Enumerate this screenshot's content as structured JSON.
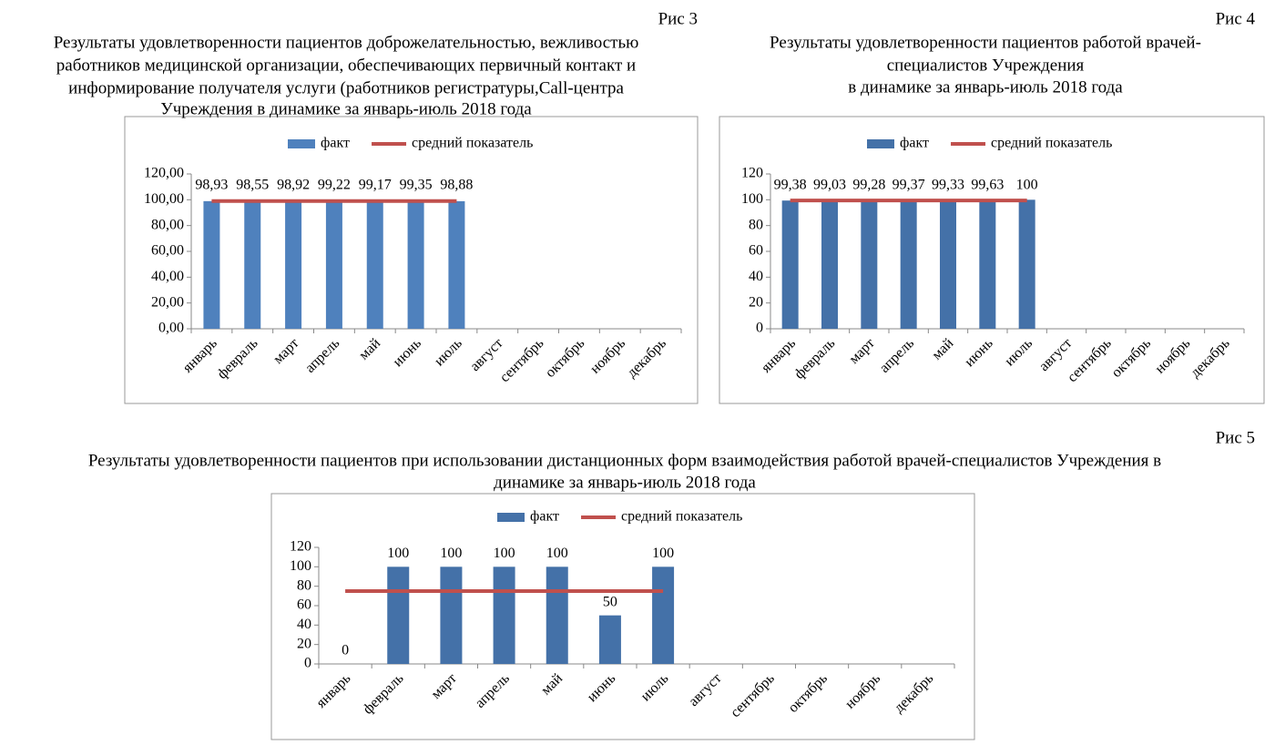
{
  "chart_data": [
    {
      "type": "bar",
      "figure": "Рис 3",
      "title": [
        "Результаты удовлетворенности пациентов доброжелательностью, вежливостью",
        "работников медицинской организации, обеспечивающих первичный контакт и",
        "информирование получателя услуги (работников регистратуры,Call-центра",
        "Учреждения в динамике за январь-июль 2018 года"
      ],
      "categories": [
        "январь",
        "февраль",
        "март",
        "апрель",
        "май",
        "июнь",
        "июль",
        "август",
        "сентябрь",
        "октябрь",
        "ноябрь",
        "декабрь"
      ],
      "series": [
        {
          "name": "факт",
          "color": "#4f81bd",
          "values": [
            98.93,
            98.55,
            98.92,
            99.22,
            99.17,
            99.35,
            98.88,
            null,
            null,
            null,
            null,
            null
          ],
          "value_labels": [
            "98,93",
            "98,55",
            "98,92",
            "99,22",
            "99,17",
            "99,35",
            "98,88",
            null,
            null,
            null,
            null,
            null
          ]
        },
        {
          "name": "средний показатель",
          "color": "#c0504d",
          "type": "line",
          "values": [
            99.0,
            99.0,
            99.0,
            99.0,
            99.0,
            99.0,
            99.0,
            null,
            null,
            null,
            null,
            null
          ]
        }
      ],
      "ylim": [
        0,
        120
      ],
      "yticks": [
        {
          "value": 0,
          "label": "0,00"
        },
        {
          "value": 20,
          "label": "20,00"
        },
        {
          "value": 40,
          "label": "40,00"
        },
        {
          "value": 60,
          "label": "60,00"
        },
        {
          "value": 80,
          "label": "80,00"
        },
        {
          "value": 100,
          "label": "100,00"
        },
        {
          "value": 120,
          "label": "120,00"
        }
      ]
    },
    {
      "type": "bar",
      "figure": "Рис 4",
      "title": [
        "Результаты удовлетворенности пациентов работой врачей-",
        "специалистов Учреждения",
        "в динамике за январь-июль 2018 года"
      ],
      "categories": [
        "январь",
        "февраль",
        "март",
        "апрель",
        "май",
        "июнь",
        "июль",
        "август",
        "сентябрь",
        "октябрь",
        "ноябрь",
        "декабрь"
      ],
      "series": [
        {
          "name": "факт",
          "color": "#4471a8",
          "values": [
            99.38,
            99.03,
            99.28,
            99.37,
            99.33,
            99.63,
            100,
            null,
            null,
            null,
            null,
            null
          ],
          "value_labels": [
            "99,38",
            "99,03",
            "99,28",
            "99,37",
            "99,33",
            "99,63",
            "100",
            null,
            null,
            null,
            null,
            null
          ]
        },
        {
          "name": "средний показатель",
          "color": "#c0504d",
          "type": "line",
          "values": [
            99.4,
            99.4,
            99.4,
            99.4,
            99.4,
            99.4,
            99.4,
            null,
            null,
            null,
            null,
            null
          ]
        }
      ],
      "ylim": [
        0,
        120
      ],
      "yticks": [
        0,
        20,
        40,
        60,
        80,
        100,
        120
      ]
    },
    {
      "type": "bar",
      "figure": "Рис 5",
      "title": [
        "Результаты удовлетворенности пациентов при использовании дистанционных форм взаимодействия работой врачей-специалистов Учреждения в",
        "динамике за январь-июль 2018 года"
      ],
      "categories": [
        "январь",
        "февраль",
        "март",
        "апрель",
        "май",
        "июнь",
        "июль",
        "август",
        "сентябрь",
        "октябрь",
        "ноябрь",
        "декабрь"
      ],
      "series": [
        {
          "name": "факт",
          "color": "#4471a8",
          "values": [
            0,
            100,
            100,
            100,
            100,
            50,
            100,
            null,
            null,
            null,
            null,
            null
          ]
        },
        {
          "name": "средний показатель",
          "color": "#c0504d",
          "type": "line",
          "values": [
            75,
            75,
            75,
            75,
            75,
            75,
            75,
            null,
            null,
            null,
            null,
            null
          ]
        }
      ],
      "ylim": [
        0,
        120
      ],
      "yticks": [
        0,
        20,
        40,
        60,
        80,
        100,
        120
      ]
    }
  ]
}
